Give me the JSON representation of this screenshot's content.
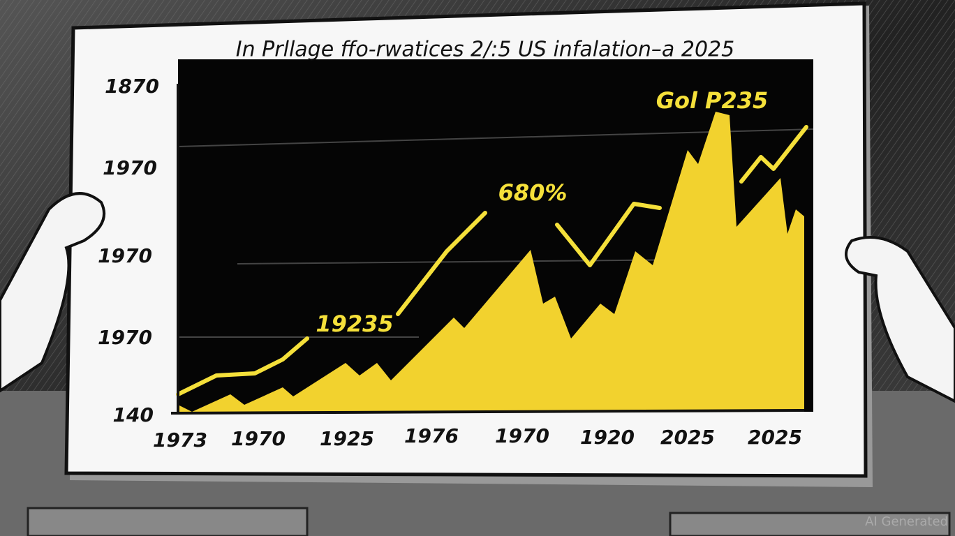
{
  "title": "In Prllage ffo-rwatices 2/:5 US infalation–a 2025",
  "annotations": [
    "19235",
    "680%",
    "Gol P235"
  ],
  "y_axis_labels": [
    "1870",
    "1970",
    "1970",
    "1970",
    "140"
  ],
  "x_axis_labels": [
    "1973",
    "1970",
    "1925",
    "1976",
    "1970",
    "1920",
    "2025",
    "2025"
  ],
  "watermark": "AI Generated"
}
